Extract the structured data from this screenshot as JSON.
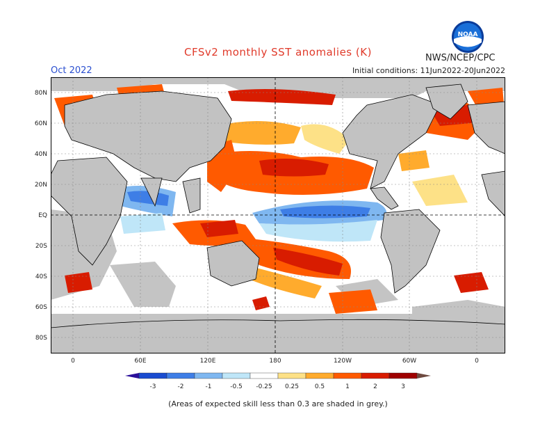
{
  "header": {
    "title": "CFSv2 monthly SST anomalies (K)",
    "period": "Oct 2022",
    "initial_conditions": "Initial conditions: 11Jun2022-20Jun2022",
    "agency": "NWS/NCEP/CPC",
    "logo_text": "NOAA"
  },
  "map": {
    "lat_labels": [
      "80N",
      "60N",
      "40N",
      "20N",
      "EQ",
      "20S",
      "40S",
      "60S",
      "80S"
    ],
    "lon_labels": [
      "0",
      "60E",
      "120E",
      "180",
      "120W",
      "60W",
      "0"
    ],
    "colors": {
      "land": "#c2c2c2",
      "ocean": "#ffffff",
      "coast": "#000000"
    }
  },
  "colorbar": {
    "labels": [
      "-3",
      "-2",
      "-1",
      "-0.5",
      "-0.25",
      "0.25",
      "0.5",
      "1",
      "2",
      "3"
    ],
    "colors": [
      "#2a0f9a",
      "#1a4cd0",
      "#3e7ee6",
      "#7fb7f0",
      "#bfe6f8",
      "#ffffff",
      "#fde187",
      "#ffab2d",
      "#ff5a00",
      "#d81c00",
      "#9e0000",
      "#6e4a40"
    ]
  },
  "footnote": "(Areas of expected skill less than 0.3 are shaded in grey.)"
}
